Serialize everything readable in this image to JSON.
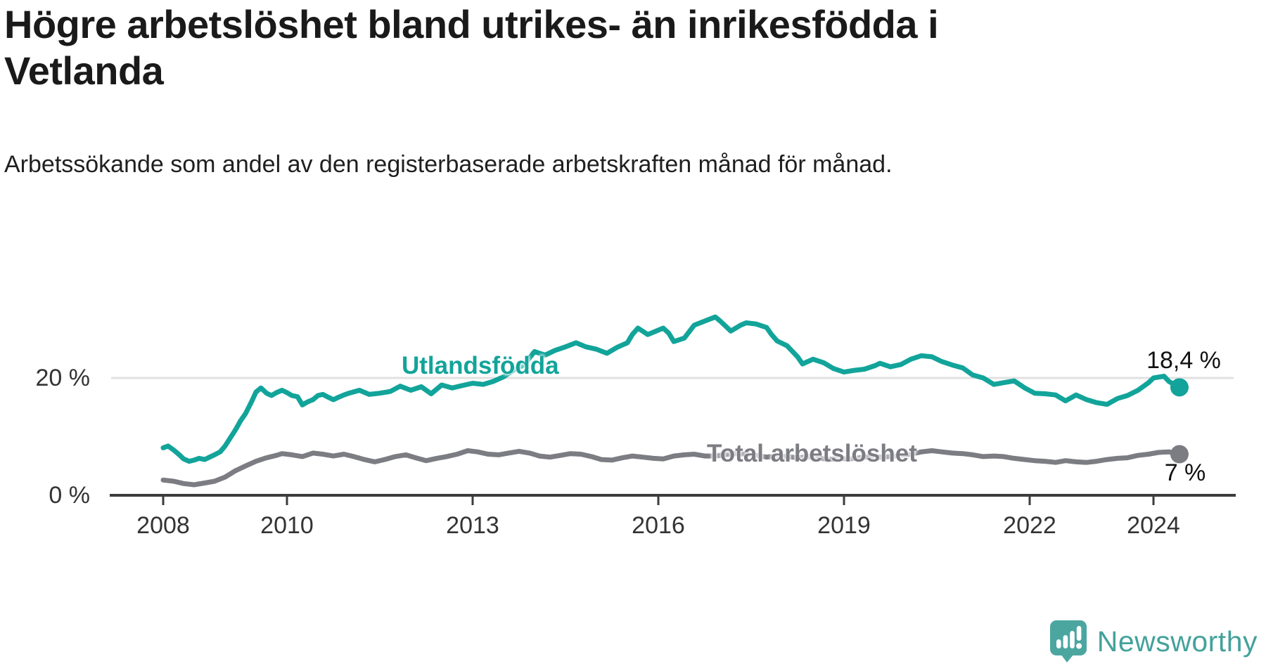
{
  "header": {
    "title": "Högre arbetslöshet bland utrikes- än inrikesfödda i Vetlanda",
    "subtitle": "Arbetssökande som andel av den registerbaserade arbetskraften månad för månad."
  },
  "footer": {
    "brand": "Newsworthy",
    "logo_icon": "newsworthy-speech-bubble-bar-chart-icon"
  },
  "colors": {
    "foreign_born_line": "#12A49A",
    "total_line": "#7C7C83",
    "grid": "#E1E1E1",
    "axis": "#3C3C3C",
    "tick_text": "#333333",
    "title_text": "#1A1A1A",
    "brand_teal": "#44A19B"
  },
  "chart_data": {
    "type": "line",
    "title": "Högre arbetslöshet bland utrikes- än inrikesfödda i Vetlanda",
    "subtitle": "Arbetssökande som andel av den registerbaserade arbetskraften månad för månad.",
    "xlabel": "",
    "ylabel": "%",
    "grid": "horizontal, only at 20 %",
    "legend_position": "inline-series-labels",
    "x_axis": {
      "ticks": [
        2008,
        2010,
        2013,
        2016,
        2019,
        2022,
        2024
      ],
      "range": [
        2007.7,
        2025.3
      ]
    },
    "y_axis": {
      "ticks": [
        {
          "value": 0,
          "label": "0 %"
        },
        {
          "value": 20,
          "label": "20 %"
        }
      ],
      "range": [
        0,
        33
      ],
      "unit": "%"
    },
    "series": [
      {
        "name": "Utlandsfödda",
        "color": "#12A49A",
        "end_label": "18,4 %",
        "end_value": 18.4,
        "points": [
          [
            2008.0,
            8.1
          ],
          [
            2008.08,
            8.4
          ],
          [
            2008.17,
            7.7
          ],
          [
            2008.25,
            7.0
          ],
          [
            2008.33,
            6.2
          ],
          [
            2008.42,
            5.8
          ],
          [
            2008.5,
            6.0
          ],
          [
            2008.58,
            6.3
          ],
          [
            2008.67,
            6.1
          ],
          [
            2008.75,
            6.5
          ],
          [
            2008.83,
            6.9
          ],
          [
            2008.92,
            7.4
          ],
          [
            2009.0,
            8.4
          ],
          [
            2009.08,
            9.7
          ],
          [
            2009.17,
            11.2
          ],
          [
            2009.25,
            12.7
          ],
          [
            2009.33,
            13.9
          ],
          [
            2009.42,
            15.8
          ],
          [
            2009.5,
            17.6
          ],
          [
            2009.58,
            18.3
          ],
          [
            2009.67,
            17.4
          ],
          [
            2009.75,
            17.0
          ],
          [
            2009.83,
            17.5
          ],
          [
            2009.92,
            17.9
          ],
          [
            2010.0,
            17.5
          ],
          [
            2010.08,
            17.0
          ],
          [
            2010.17,
            16.8
          ],
          [
            2010.25,
            15.4
          ],
          [
            2010.33,
            15.9
          ],
          [
            2010.42,
            16.3
          ],
          [
            2010.5,
            17.0
          ],
          [
            2010.58,
            17.2
          ],
          [
            2010.67,
            16.7
          ],
          [
            2010.75,
            16.3
          ],
          [
            2010.83,
            16.7
          ],
          [
            2010.92,
            17.1
          ],
          [
            2011.0,
            17.4
          ],
          [
            2011.17,
            17.9
          ],
          [
            2011.33,
            17.2
          ],
          [
            2011.5,
            17.4
          ],
          [
            2011.67,
            17.7
          ],
          [
            2011.83,
            18.6
          ],
          [
            2012.0,
            17.9
          ],
          [
            2012.17,
            18.5
          ],
          [
            2012.33,
            17.3
          ],
          [
            2012.5,
            18.8
          ],
          [
            2012.67,
            18.3
          ],
          [
            2012.83,
            18.7
          ],
          [
            2013.0,
            19.1
          ],
          [
            2013.17,
            18.9
          ],
          [
            2013.33,
            19.4
          ],
          [
            2013.5,
            20.2
          ],
          [
            2013.67,
            21.4
          ],
          [
            2013.83,
            22.2
          ],
          [
            2014.0,
            24.5
          ],
          [
            2014.08,
            24.2
          ],
          [
            2014.17,
            23.9
          ],
          [
            2014.33,
            24.7
          ],
          [
            2014.5,
            25.3
          ],
          [
            2014.67,
            26.0
          ],
          [
            2014.83,
            25.3
          ],
          [
            2015.0,
            24.9
          ],
          [
            2015.17,
            24.2
          ],
          [
            2015.33,
            25.2
          ],
          [
            2015.5,
            26.0
          ],
          [
            2015.58,
            27.4
          ],
          [
            2015.67,
            28.5
          ],
          [
            2015.83,
            27.4
          ],
          [
            2015.92,
            27.8
          ],
          [
            2016.08,
            28.5
          ],
          [
            2016.17,
            27.6
          ],
          [
            2016.25,
            26.2
          ],
          [
            2016.42,
            26.8
          ],
          [
            2016.58,
            29.0
          ],
          [
            2016.75,
            29.7
          ],
          [
            2016.92,
            30.4
          ],
          [
            2017.0,
            29.7
          ],
          [
            2017.17,
            28.0
          ],
          [
            2017.33,
            29.0
          ],
          [
            2017.42,
            29.4
          ],
          [
            2017.58,
            29.2
          ],
          [
            2017.75,
            28.6
          ],
          [
            2017.83,
            27.4
          ],
          [
            2017.92,
            26.3
          ],
          [
            2018.08,
            25.5
          ],
          [
            2018.25,
            23.6
          ],
          [
            2018.33,
            22.4
          ],
          [
            2018.5,
            23.2
          ],
          [
            2018.67,
            22.6
          ],
          [
            2018.83,
            21.6
          ],
          [
            2019.0,
            21.0
          ],
          [
            2019.17,
            21.3
          ],
          [
            2019.33,
            21.5
          ],
          [
            2019.5,
            22.1
          ],
          [
            2019.58,
            22.5
          ],
          [
            2019.75,
            21.9
          ],
          [
            2019.92,
            22.3
          ],
          [
            2020.08,
            23.2
          ],
          [
            2020.25,
            23.8
          ],
          [
            2020.42,
            23.6
          ],
          [
            2020.58,
            22.8
          ],
          [
            2020.75,
            22.2
          ],
          [
            2020.92,
            21.7
          ],
          [
            2021.08,
            20.5
          ],
          [
            2021.25,
            20.0
          ],
          [
            2021.42,
            18.9
          ],
          [
            2021.58,
            19.2
          ],
          [
            2021.75,
            19.5
          ],
          [
            2021.92,
            18.3
          ],
          [
            2022.08,
            17.4
          ],
          [
            2022.25,
            17.3
          ],
          [
            2022.42,
            17.1
          ],
          [
            2022.58,
            16.1
          ],
          [
            2022.75,
            17.1
          ],
          [
            2022.92,
            16.3
          ],
          [
            2023.08,
            15.8
          ],
          [
            2023.25,
            15.5
          ],
          [
            2023.42,
            16.5
          ],
          [
            2023.58,
            17.0
          ],
          [
            2023.75,
            17.9
          ],
          [
            2023.92,
            19.2
          ],
          [
            2024.0,
            20.0
          ],
          [
            2024.17,
            20.3
          ],
          [
            2024.25,
            19.4
          ],
          [
            2024.42,
            18.4
          ]
        ]
      },
      {
        "name": "Total arbetslöshet",
        "color": "#7C7C83",
        "end_label": "7 %",
        "end_value": 7.0,
        "points": [
          [
            2008.0,
            2.6
          ],
          [
            2008.17,
            2.4
          ],
          [
            2008.33,
            2.0
          ],
          [
            2008.5,
            1.8
          ],
          [
            2008.67,
            2.1
          ],
          [
            2008.83,
            2.4
          ],
          [
            2009.0,
            3.1
          ],
          [
            2009.17,
            4.2
          ],
          [
            2009.33,
            5.0
          ],
          [
            2009.5,
            5.8
          ],
          [
            2009.67,
            6.4
          ],
          [
            2009.83,
            6.8
          ],
          [
            2009.92,
            7.1
          ],
          [
            2010.08,
            6.9
          ],
          [
            2010.25,
            6.6
          ],
          [
            2010.42,
            7.2
          ],
          [
            2010.58,
            7.0
          ],
          [
            2010.75,
            6.7
          ],
          [
            2010.92,
            7.0
          ],
          [
            2011.08,
            6.6
          ],
          [
            2011.25,
            6.1
          ],
          [
            2011.42,
            5.7
          ],
          [
            2011.58,
            6.1
          ],
          [
            2011.75,
            6.6
          ],
          [
            2011.92,
            6.9
          ],
          [
            2012.08,
            6.4
          ],
          [
            2012.25,
            5.9
          ],
          [
            2012.42,
            6.3
          ],
          [
            2012.58,
            6.6
          ],
          [
            2012.75,
            7.0
          ],
          [
            2012.92,
            7.6
          ],
          [
            2013.08,
            7.4
          ],
          [
            2013.25,
            7.0
          ],
          [
            2013.42,
            6.9
          ],
          [
            2013.58,
            7.2
          ],
          [
            2013.75,
            7.5
          ],
          [
            2013.92,
            7.2
          ],
          [
            2014.08,
            6.7
          ],
          [
            2014.25,
            6.5
          ],
          [
            2014.42,
            6.8
          ],
          [
            2014.58,
            7.1
          ],
          [
            2014.75,
            7.0
          ],
          [
            2014.92,
            6.6
          ],
          [
            2015.08,
            6.1
          ],
          [
            2015.25,
            6.0
          ],
          [
            2015.42,
            6.4
          ],
          [
            2015.58,
            6.7
          ],
          [
            2015.75,
            6.5
          ],
          [
            2015.92,
            6.3
          ],
          [
            2016.08,
            6.2
          ],
          [
            2016.25,
            6.7
          ],
          [
            2016.42,
            6.9
          ],
          [
            2016.58,
            7.0
          ],
          [
            2016.75,
            6.7
          ],
          [
            2016.92,
            6.7
          ],
          [
            2017.08,
            6.9
          ],
          [
            2017.25,
            7.1
          ],
          [
            2017.42,
            7.0
          ],
          [
            2017.58,
            6.8
          ],
          [
            2017.75,
            6.5
          ],
          [
            2017.92,
            6.7
          ],
          [
            2018.08,
            6.6
          ],
          [
            2018.25,
            6.4
          ],
          [
            2018.42,
            6.6
          ],
          [
            2018.58,
            6.4
          ],
          [
            2018.75,
            6.1
          ],
          [
            2018.92,
            6.3
          ],
          [
            2019.08,
            6.2
          ],
          [
            2019.25,
            6.4
          ],
          [
            2019.42,
            6.6
          ],
          [
            2019.58,
            6.5
          ],
          [
            2019.75,
            6.6
          ],
          [
            2019.92,
            6.8
          ],
          [
            2020.08,
            7.0
          ],
          [
            2020.25,
            7.4
          ],
          [
            2020.42,
            7.6
          ],
          [
            2020.58,
            7.4
          ],
          [
            2020.75,
            7.2
          ],
          [
            2020.92,
            7.1
          ],
          [
            2021.08,
            6.9
          ],
          [
            2021.25,
            6.6
          ],
          [
            2021.42,
            6.7
          ],
          [
            2021.58,
            6.6
          ],
          [
            2021.75,
            6.3
          ],
          [
            2021.92,
            6.1
          ],
          [
            2022.08,
            5.9
          ],
          [
            2022.25,
            5.8
          ],
          [
            2022.42,
            5.6
          ],
          [
            2022.58,
            5.9
          ],
          [
            2022.75,
            5.7
          ],
          [
            2022.92,
            5.6
          ],
          [
            2023.08,
            5.8
          ],
          [
            2023.25,
            6.1
          ],
          [
            2023.42,
            6.3
          ],
          [
            2023.58,
            6.4
          ],
          [
            2023.75,
            6.8
          ],
          [
            2023.92,
            7.0
          ],
          [
            2024.08,
            7.3
          ],
          [
            2024.25,
            7.4
          ],
          [
            2024.42,
            7.0
          ]
        ]
      }
    ]
  }
}
